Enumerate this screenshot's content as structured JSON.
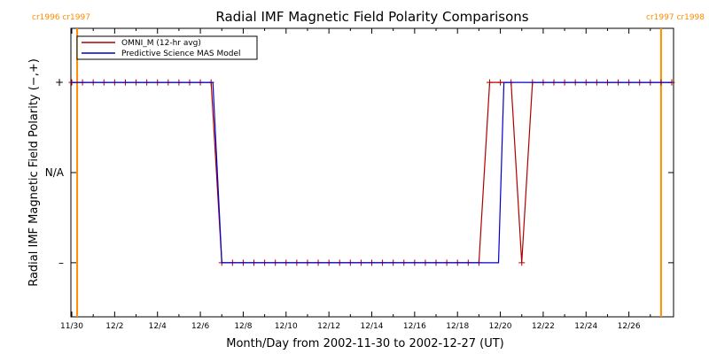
{
  "chart_data": {
    "type": "line",
    "title": "Radial IMF Magnetic Field Polarity Comparisons",
    "xlabel": "Month/Day from 2002-11-30 to 2002-12-27 (UT)",
    "ylabel": "Radial IMF Magnetic Field Polarity (−,+)",
    "xlim": [
      "2002-11-29 23:00",
      "2002-12-28 02:00"
    ],
    "ylim": [
      -1.6,
      1.6
    ],
    "x_tick_labels": [
      {
        "date": "2002-11-30",
        "label": "11/30"
      },
      {
        "date": "2002-12-02",
        "label": "12/2"
      },
      {
        "date": "2002-12-04",
        "label": "12/4"
      },
      {
        "date": "2002-12-06",
        "label": "12/6"
      },
      {
        "date": "2002-12-08",
        "label": "12/8"
      },
      {
        "date": "2002-12-10",
        "label": "12/10"
      },
      {
        "date": "2002-12-12",
        "label": "12/12"
      },
      {
        "date": "2002-12-14",
        "label": "12/14"
      },
      {
        "date": "2002-12-16",
        "label": "12/16"
      },
      {
        "date": "2002-12-18",
        "label": "12/18"
      },
      {
        "date": "2002-12-20",
        "label": "12/20"
      },
      {
        "date": "2002-12-22",
        "label": "12/22"
      },
      {
        "date": "2002-12-24",
        "label": "12/24"
      },
      {
        "date": "2002-12-26",
        "label": "12/26"
      }
    ],
    "y_tick_labels": [
      {
        "value": 1,
        "label": "+"
      },
      {
        "value": 0,
        "label": "N/A"
      },
      {
        "value": -1,
        "label": "–"
      }
    ],
    "carrington_markers": [
      {
        "date": "2002-11-30 06:00",
        "left_label": "cr1996",
        "right_label": "cr1997",
        "label_side": "left"
      },
      {
        "date": "2002-12-27 12:00",
        "left_label": "cr1997",
        "right_label": "cr1998",
        "label_side": "right"
      }
    ],
    "series": [
      {
        "name": "OMNI_M (12-hr avg)",
        "color": "#b00000",
        "marker": "plus",
        "points": [
          {
            "t": "2002-11-30 00:00",
            "y": 1
          },
          {
            "t": "2002-11-30 12:00",
            "y": 1
          },
          {
            "t": "2002-12-01 00:00",
            "y": 1
          },
          {
            "t": "2002-12-01 12:00",
            "y": 1
          },
          {
            "t": "2002-12-02 00:00",
            "y": 1
          },
          {
            "t": "2002-12-02 12:00",
            "y": 1
          },
          {
            "t": "2002-12-03 00:00",
            "y": 1
          },
          {
            "t": "2002-12-03 12:00",
            "y": 1
          },
          {
            "t": "2002-12-04 00:00",
            "y": 1
          },
          {
            "t": "2002-12-04 12:00",
            "y": 1
          },
          {
            "t": "2002-12-05 00:00",
            "y": 1
          },
          {
            "t": "2002-12-05 12:00",
            "y": 1
          },
          {
            "t": "2002-12-06 00:00",
            "y": 1
          },
          {
            "t": "2002-12-06 12:00",
            "y": 1
          },
          {
            "t": "2002-12-07 00:00",
            "y": -1
          },
          {
            "t": "2002-12-07 12:00",
            "y": -1
          },
          {
            "t": "2002-12-08 00:00",
            "y": -1
          },
          {
            "t": "2002-12-08 12:00",
            "y": -1
          },
          {
            "t": "2002-12-09 00:00",
            "y": -1
          },
          {
            "t": "2002-12-09 12:00",
            "y": -1
          },
          {
            "t": "2002-12-10 00:00",
            "y": -1
          },
          {
            "t": "2002-12-10 12:00",
            "y": -1
          },
          {
            "t": "2002-12-11 00:00",
            "y": -1
          },
          {
            "t": "2002-12-11 12:00",
            "y": -1
          },
          {
            "t": "2002-12-12 00:00",
            "y": -1
          },
          {
            "t": "2002-12-12 12:00",
            "y": -1
          },
          {
            "t": "2002-12-13 00:00",
            "y": -1
          },
          {
            "t": "2002-12-13 12:00",
            "y": -1
          },
          {
            "t": "2002-12-14 00:00",
            "y": -1
          },
          {
            "t": "2002-12-14 12:00",
            "y": -1
          },
          {
            "t": "2002-12-15 00:00",
            "y": -1
          },
          {
            "t": "2002-12-15 12:00",
            "y": -1
          },
          {
            "t": "2002-12-16 00:00",
            "y": -1
          },
          {
            "t": "2002-12-16 12:00",
            "y": -1
          },
          {
            "t": "2002-12-17 00:00",
            "y": -1
          },
          {
            "t": "2002-12-17 12:00",
            "y": -1
          },
          {
            "t": "2002-12-18 00:00",
            "y": -1
          },
          {
            "t": "2002-12-18 12:00",
            "y": -1
          },
          {
            "t": "2002-12-19 00:00",
            "y": -1
          },
          {
            "t": "2002-12-19 12:00",
            "y": 1
          },
          {
            "t": "2002-12-20 00:00",
            "y": 1
          },
          {
            "t": "2002-12-20 12:00",
            "y": 1
          },
          {
            "t": "2002-12-21 00:00",
            "y": -1
          },
          {
            "t": "2002-12-21 12:00",
            "y": 1
          },
          {
            "t": "2002-12-22 00:00",
            "y": 1
          },
          {
            "t": "2002-12-22 12:00",
            "y": 1
          },
          {
            "t": "2002-12-23 00:00",
            "y": 1
          },
          {
            "t": "2002-12-23 12:00",
            "y": 1
          },
          {
            "t": "2002-12-24 00:00",
            "y": 1
          },
          {
            "t": "2002-12-24 12:00",
            "y": 1
          },
          {
            "t": "2002-12-25 00:00",
            "y": 1
          },
          {
            "t": "2002-12-25 12:00",
            "y": 1
          },
          {
            "t": "2002-12-26 00:00",
            "y": 1
          },
          {
            "t": "2002-12-26 12:00",
            "y": 1
          },
          {
            "t": "2002-12-27 00:00",
            "y": 1
          },
          {
            "t": "2002-12-27 12:00",
            "y": 1
          },
          {
            "t": "2002-12-28 00:00",
            "y": 1
          }
        ]
      },
      {
        "name": "Predictive Science MAS Model",
        "color": "#0000cc",
        "marker": "none",
        "points": [
          {
            "t": "2002-11-30 00:00",
            "y": 1
          },
          {
            "t": "2002-12-06 14:00",
            "y": 1
          },
          {
            "t": "2002-12-07 00:00",
            "y": -1
          },
          {
            "t": "2002-12-19 22:00",
            "y": -1
          },
          {
            "t": "2002-12-20 04:00",
            "y": 1
          },
          {
            "t": "2002-12-28 00:00",
            "y": 1
          }
        ]
      }
    ],
    "legend_position": "top-left",
    "grid": false
  }
}
